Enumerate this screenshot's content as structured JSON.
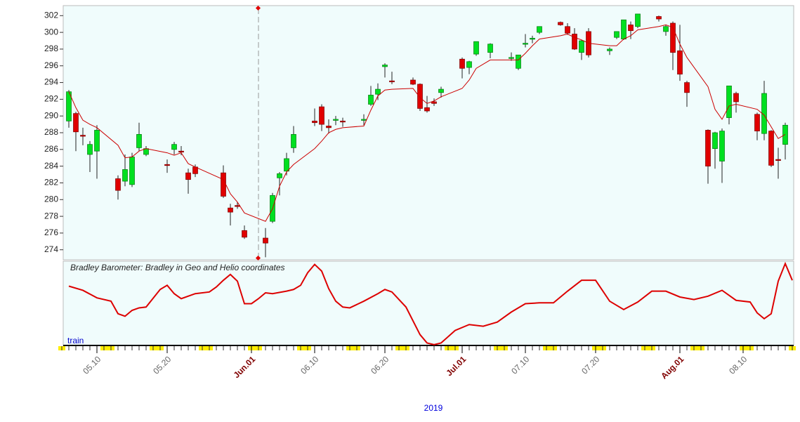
{
  "chart_data": [
    {
      "type": "candlestick",
      "x": [
        "05.06",
        "05.07",
        "05.08",
        "05.09",
        "05.10",
        "05.13",
        "05.14",
        "05.15",
        "05.16",
        "05.17",
        "05.20",
        "05.21",
        "05.22",
        "05.23",
        "05.24",
        "05.28",
        "05.29",
        "05.30",
        "05.31",
        "06.03",
        "06.04",
        "06.05",
        "06.06",
        "06.07",
        "06.10",
        "06.11",
        "06.12",
        "06.13",
        "06.14",
        "06.17",
        "06.18",
        "06.19",
        "06.20",
        "06.21",
        "06.24",
        "06.25",
        "06.26",
        "06.27",
        "06.28",
        "07.01",
        "07.02",
        "07.03",
        "07.05",
        "07.08",
        "07.09",
        "07.10",
        "07.11",
        "07.12",
        "07.15",
        "07.16",
        "07.17",
        "07.18",
        "07.19",
        "07.22",
        "07.23",
        "07.24",
        "07.25",
        "07.26",
        "07.29",
        "07.30",
        "07.31",
        "08.01",
        "08.02",
        "08.05",
        "08.06",
        "08.07",
        "08.08",
        "08.09",
        "08.12",
        "08.13",
        "08.14",
        "08.15",
        "08.16"
      ],
      "open": [
        289.4,
        290.3,
        287.7,
        285.4,
        285.8,
        282.5,
        282.2,
        281.8,
        286.2,
        285.4,
        284.2,
        286.0,
        285.8,
        283.2,
        283.9,
        283.2,
        279.0,
        279.3,
        276.3,
        275.4,
        277.4,
        282.6,
        283.4,
        286.2,
        289.4,
        291.1,
        288.8,
        289.5,
        289.4,
        289.5,
        291.4,
        292.6,
        295.9,
        294.2,
        294.3,
        293.8,
        291.0,
        291.7,
        292.8,
        296.8,
        295.8,
        297.4,
        297.6,
        297.0,
        295.7,
        298.6,
        299.2,
        300.0,
        301.2,
        300.7,
        299.8,
        297.6,
        300.1,
        297.8,
        299.4,
        299.2,
        300.9,
        300.7,
        301.9,
        300.1,
        301.1,
        297.8,
        294.0,
        288.3,
        286.1,
        284.6,
        289.8,
        292.7,
        290.2,
        287.9,
        288.2,
        284.8,
        286.6
      ],
      "high": [
        293.1,
        290.5,
        288.6,
        287.0,
        288.9,
        282.9,
        285.4,
        285.6,
        289.2,
        286.4,
        284.8,
        286.9,
        286.4,
        283.7,
        284.2,
        284.1,
        279.5,
        279.7,
        276.9,
        276.6,
        280.8,
        283.3,
        285.6,
        288.8,
        290.9,
        291.4,
        289.6,
        290.0,
        289.8,
        290.2,
        293.6,
        293.9,
        296.3,
        295.3,
        294.6,
        293.9,
        292.4,
        292.1,
        293.5,
        297.0,
        296.6,
        298.9,
        298.7,
        297.6,
        297.3,
        299.8,
        299.6,
        300.7,
        301.3,
        301.1,
        300.5,
        299.1,
        300.5,
        298.2,
        300.1,
        301.5,
        301.3,
        302.2,
        302.0,
        300.9,
        301.3,
        300.9,
        294.2,
        288.4,
        288.1,
        288.5,
        293.6,
        292.9,
        290.4,
        294.2,
        288.3,
        286.2,
        289.2
      ],
      "low": [
        288.6,
        285.8,
        286.5,
        283.3,
        282.5,
        280.0,
        281.6,
        281.5,
        285.8,
        285.2,
        283.2,
        285.4,
        285.3,
        280.7,
        282.7,
        280.2,
        276.9,
        278.9,
        275.3,
        273.1,
        277.2,
        280.5,
        282.9,
        285.6,
        288.8,
        288.2,
        287.9,
        288.9,
        288.7,
        288.9,
        291.2,
        291.9,
        294.6,
        293.8,
        293.7,
        290.6,
        290.4,
        291.2,
        292.2,
        294.5,
        295.0,
        297.2,
        296.9,
        296.6,
        295.5,
        298.2,
        298.7,
        299.8,
        300.8,
        299.7,
        297.9,
        296.7,
        297.0,
        297.3,
        299.2,
        299.1,
        299.2,
        300.5,
        301.3,
        299.6,
        295.5,
        294.2,
        291.1,
        281.9,
        283.7,
        282.0,
        289.0,
        290.4,
        287.1,
        287.1,
        283.9,
        282.5,
        284.8
      ],
      "close": [
        292.9,
        288.1,
        287.6,
        286.6,
        288.3,
        281.1,
        283.6,
        285.1,
        287.8,
        286.1,
        284.1,
        286.6,
        285.7,
        282.4,
        283.1,
        280.4,
        278.5,
        279.2,
        275.5,
        274.8,
        280.5,
        283.1,
        284.9,
        287.8,
        289.2,
        289.0,
        288.6,
        289.6,
        289.3,
        289.6,
        292.5,
        293.2,
        296.1,
        294.1,
        293.8,
        290.9,
        290.6,
        291.5,
        293.2,
        295.7,
        296.5,
        298.9,
        298.6,
        297.0,
        297.3,
        298.7,
        299.3,
        300.7,
        300.9,
        299.9,
        298.0,
        299.0,
        297.3,
        298.0,
        300.1,
        301.5,
        300.2,
        302.2,
        301.6,
        300.7,
        297.6,
        295.0,
        292.8,
        284.0,
        288.0,
        288.2,
        293.6,
        291.7,
        288.2,
        292.7,
        284.1,
        284.7,
        288.9
      ],
      "line": {
        "color": "#cc0000",
        "values": [
          292.9,
          291,
          289.5,
          289,
          288.6,
          286.5,
          285,
          285.1,
          285.8,
          286.1,
          285.6,
          285.3,
          285.6,
          284.3,
          283.9,
          282.4,
          280.7,
          279.7,
          278.4,
          277.4,
          278.9,
          281.6,
          283.3,
          284.2,
          286.1,
          287.0,
          288.0,
          288.4,
          288.6,
          288.8,
          290.7,
          292.4,
          293.1,
          293.2,
          293.3,
          292.2,
          291.5,
          291.8,
          292.3,
          293.3,
          294.3,
          295.7,
          296.7,
          296.7,
          296.7,
          297.5,
          298.4,
          299.2,
          299.6,
          299.8,
          299.4,
          299.1,
          298.7,
          298.4,
          298.4,
          299.2,
          299.6,
          300.3,
          300.7,
          300.9,
          300.6,
          298.6,
          297.0,
          293.5,
          290.8,
          289.6,
          291.2,
          291.4,
          290.8,
          290.1,
          288.7,
          287.3,
          287.8
        ]
      },
      "up_color": "#00e020",
      "down_color": "#e00000",
      "xlim": [
        "05.05",
        "08.17"
      ],
      "ylim": [
        272.8,
        303.2
      ],
      "yticks": [
        274,
        276,
        278,
        280,
        282,
        284,
        286,
        288,
        290,
        292,
        294,
        296,
        298,
        300,
        302
      ]
    },
    {
      "type": "line",
      "title": "Bradley Barometer: Bradley in Geo and Helio coordinates",
      "label": "train",
      "x": [
        "05.06",
        "05.08",
        "05.10",
        "05.12",
        "05.13",
        "05.14",
        "05.15",
        "05.16",
        "05.17",
        "05.19",
        "05.20",
        "05.21",
        "05.22",
        "05.24",
        "05.26",
        "05.27",
        "05.28",
        "05.29",
        "05.30",
        "05.31",
        "06.01",
        "06.02",
        "06.03",
        "06.04",
        "06.06",
        "06.07",
        "06.08",
        "06.09",
        "06.10",
        "06.11",
        "06.12",
        "06.13",
        "06.14",
        "06.15",
        "06.17",
        "06.19",
        "06.20",
        "06.21",
        "06.23",
        "06.25",
        "06.26",
        "06.27",
        "06.28",
        "06.30",
        "07.02",
        "07.04",
        "07.06",
        "07.08",
        "07.10",
        "07.12",
        "07.14",
        "07.16",
        "07.18",
        "07.20",
        "07.22",
        "07.24",
        "07.26",
        "07.28",
        "07.30",
        "08.01",
        "08.03",
        "08.05",
        "08.07",
        "08.09",
        "08.11",
        "08.12",
        "08.13",
        "08.14",
        "08.15",
        "08.16",
        "08.17"
      ],
      "values": [
        71,
        66,
        57,
        53,
        38,
        35,
        42,
        45,
        46,
        67,
        72,
        62,
        56,
        62,
        64,
        70,
        78,
        85,
        77,
        50,
        50,
        56,
        63,
        62,
        65,
        67,
        72,
        87,
        97,
        89,
        68,
        53,
        46,
        45,
        53,
        62,
        67,
        64,
        46,
        13,
        3,
        1,
        3,
        18,
        25,
        23,
        28,
        40,
        50,
        51,
        51,
        65,
        78,
        78,
        53,
        43,
        52,
        65,
        65,
        58,
        55,
        59,
        66,
        54,
        52,
        39,
        32,
        38,
        77,
        98,
        78
      ],
      "color": "#dd0000",
      "ylim": [
        0,
        100
      ],
      "xlim": [
        "05.05",
        "08.17"
      ],
      "xticks": [
        "05.10",
        "05.20",
        {
          "value": "06.01",
          "label": "Jun.01"
        },
        "06.10",
        "06.20",
        {
          "value": "07.01",
          "label": "Jul.01"
        },
        "07.10",
        "07.20",
        {
          "value": "08.01",
          "label": "Aug.01"
        },
        "08.10"
      ],
      "xlabel": "2019"
    }
  ]
}
